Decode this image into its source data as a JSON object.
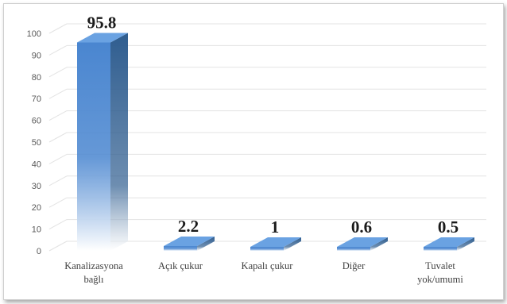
{
  "chart_data": {
    "type": "bar",
    "categories": [
      "Kanalizasyona bağlı",
      "Açık çukur",
      "Kapalı çukur",
      "Diğer",
      "Tuvalet yok/umumi"
    ],
    "category_lines": [
      [
        "Kanalizasyona",
        "bağlı"
      ],
      [
        "Açık çukur"
      ],
      [
        "Kapalı çukur"
      ],
      [
        "Diğer"
      ],
      [
        "Tuvalet",
        "yok/umumi"
      ]
    ],
    "values": [
      95.8,
      2.2,
      1,
      0.6,
      0.5
    ],
    "data_labels": [
      "95.8",
      "2.2",
      "1",
      "0.6",
      "0.5"
    ],
    "title": "",
    "xlabel": "",
    "ylabel": "",
    "ylim": [
      0,
      100
    ],
    "yticks": [
      0,
      10,
      20,
      30,
      40,
      50,
      60,
      70,
      80,
      90,
      100
    ],
    "grid": true,
    "legend": "none",
    "style": "3d-column",
    "colors": {
      "front_top": "#4a86d0",
      "front_bottom": "#ffffff",
      "side": "#2f5d8f",
      "top": "#6aa2e2",
      "grid": "#e3e3e3"
    }
  }
}
